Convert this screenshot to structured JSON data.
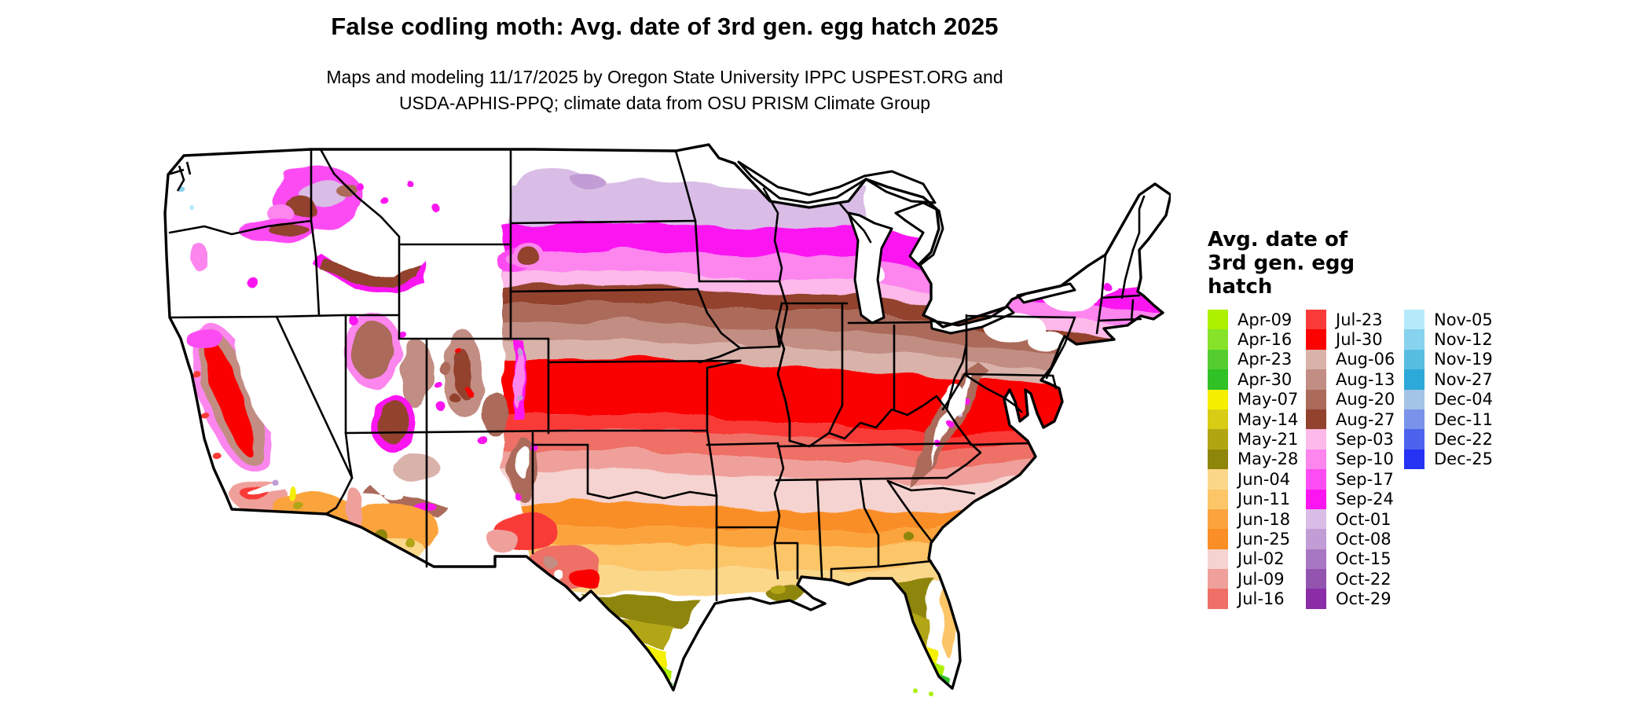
{
  "title": "False codling moth: Avg. date of 3rd gen. egg hatch 2025",
  "subtitle_line1": "Maps and modeling 11/17/2025 by Oregon State University IPPC USPEST.ORG and",
  "subtitle_line2": "USDA-APHIS-PPQ; climate data from OSU PRISM Climate Group",
  "map": {
    "region": "Continental United States",
    "no_data_color": "#ffffff",
    "border_color": "#000000"
  },
  "legend": {
    "title_lines": [
      "Avg. date of",
      "3rd gen. egg",
      "hatch"
    ],
    "columns": [
      [
        {
          "label": "Apr-09",
          "color": "#adf000"
        },
        {
          "label": "Apr-16",
          "color": "#86e32a"
        },
        {
          "label": "Apr-23",
          "color": "#55cd31"
        },
        {
          "label": "Apr-30",
          "color": "#2fc125"
        },
        {
          "label": "May-07",
          "color": "#f4f000"
        },
        {
          "label": "May-14",
          "color": "#d8cd14"
        },
        {
          "label": "May-21",
          "color": "#b2a512"
        },
        {
          "label": "May-28",
          "color": "#8e850b"
        },
        {
          "label": "Jun-04",
          "color": "#fbd78a"
        },
        {
          "label": "Jun-11",
          "color": "#fcc568"
        },
        {
          "label": "Jun-18",
          "color": "#fba43e"
        },
        {
          "label": "Jun-25",
          "color": "#fa8e27"
        },
        {
          "label": "Jul-02",
          "color": "#f5d3d0"
        },
        {
          "label": "Jul-09",
          "color": "#efa09b"
        },
        {
          "label": "Jul-16",
          "color": "#ee6f66"
        }
      ],
      [
        {
          "label": "Jul-23",
          "color": "#f93a38"
        },
        {
          "label": "Jul-30",
          "color": "#fb0200"
        },
        {
          "label": "Aug-06",
          "color": "#d9b2aa"
        },
        {
          "label": "Aug-13",
          "color": "#c28d83"
        },
        {
          "label": "Aug-20",
          "color": "#ab6a5a"
        },
        {
          "label": "Aug-27",
          "color": "#93422d"
        },
        {
          "label": "Sep-03",
          "color": "#fcb9e9"
        },
        {
          "label": "Sep-10",
          "color": "#fc85ee"
        },
        {
          "label": "Sep-17",
          "color": "#fd4cf3"
        },
        {
          "label": "Sep-24",
          "color": "#fb15f1"
        },
        {
          "label": "Oct-01",
          "color": "#d9bde6"
        },
        {
          "label": "Oct-08",
          "color": "#c29cd5"
        },
        {
          "label": "Oct-15",
          "color": "#a877c3"
        },
        {
          "label": "Oct-22",
          "color": "#9354b0"
        },
        {
          "label": "Oct-29",
          "color": "#8a2da6"
        }
      ],
      [
        {
          "label": "Nov-05",
          "color": "#b6eafb"
        },
        {
          "label": "Nov-12",
          "color": "#87d3ef"
        },
        {
          "label": "Nov-19",
          "color": "#57bee2"
        },
        {
          "label": "Nov-27",
          "color": "#2da9d9"
        },
        {
          "label": "Dec-04",
          "color": "#a3c4e5"
        },
        {
          "label": "Dec-11",
          "color": "#7a93ea"
        },
        {
          "label": "Dec-22",
          "color": "#4c63ee"
        },
        {
          "label": "Dec-25",
          "color": "#2533f4"
        }
      ]
    ]
  }
}
